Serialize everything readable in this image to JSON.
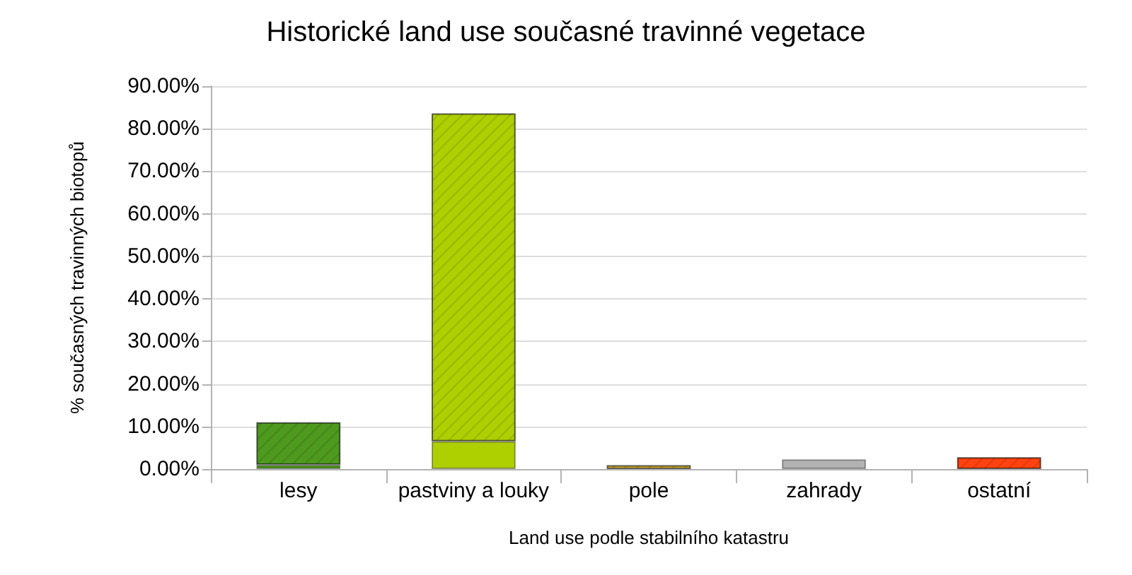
{
  "chart_data": {
    "type": "bar",
    "title": "Historické land use současné travinné vegetace",
    "xlabel": "Land use podle stabilního katastru",
    "ylabel": "% současných travinných biotopů",
    "categories": [
      "lesy",
      "pastviny a louky",
      "pole",
      "zahrady",
      "ostatní"
    ],
    "stacked": true,
    "series": [
      {
        "colors": [
          "#4e9a1e",
          "#aecf00",
          "#d9b43c",
          "#b3b3b3",
          "#ff420e"
        ],
        "values": [
          1.0,
          6.5,
          null,
          2.3,
          null
        ]
      },
      {
        "colors": [
          "#4e9a1e",
          "#aecf00",
          "#d9b43c",
          "#b3b3b3",
          "#ff420e"
        ],
        "values": [
          10.0,
          77.1,
          0.9,
          null,
          2.8
        ]
      }
    ],
    "ylim": [
      0,
      90
    ],
    "yticks": [
      {
        "value": 0,
        "label": "0.00%"
      },
      {
        "value": 10,
        "label": "10.00%"
      },
      {
        "value": 20,
        "label": "20.00%"
      },
      {
        "value": 30,
        "label": "30.00%"
      },
      {
        "value": 40,
        "label": "40.00%"
      },
      {
        "value": 50,
        "label": "50.00%"
      },
      {
        "value": 60,
        "label": "60.00%"
      },
      {
        "value": 70,
        "label": "70.00%"
      },
      {
        "value": 80,
        "label": "80.00%"
      },
      {
        "value": 90,
        "label": "90.00%"
      }
    ],
    "grid": "y"
  }
}
